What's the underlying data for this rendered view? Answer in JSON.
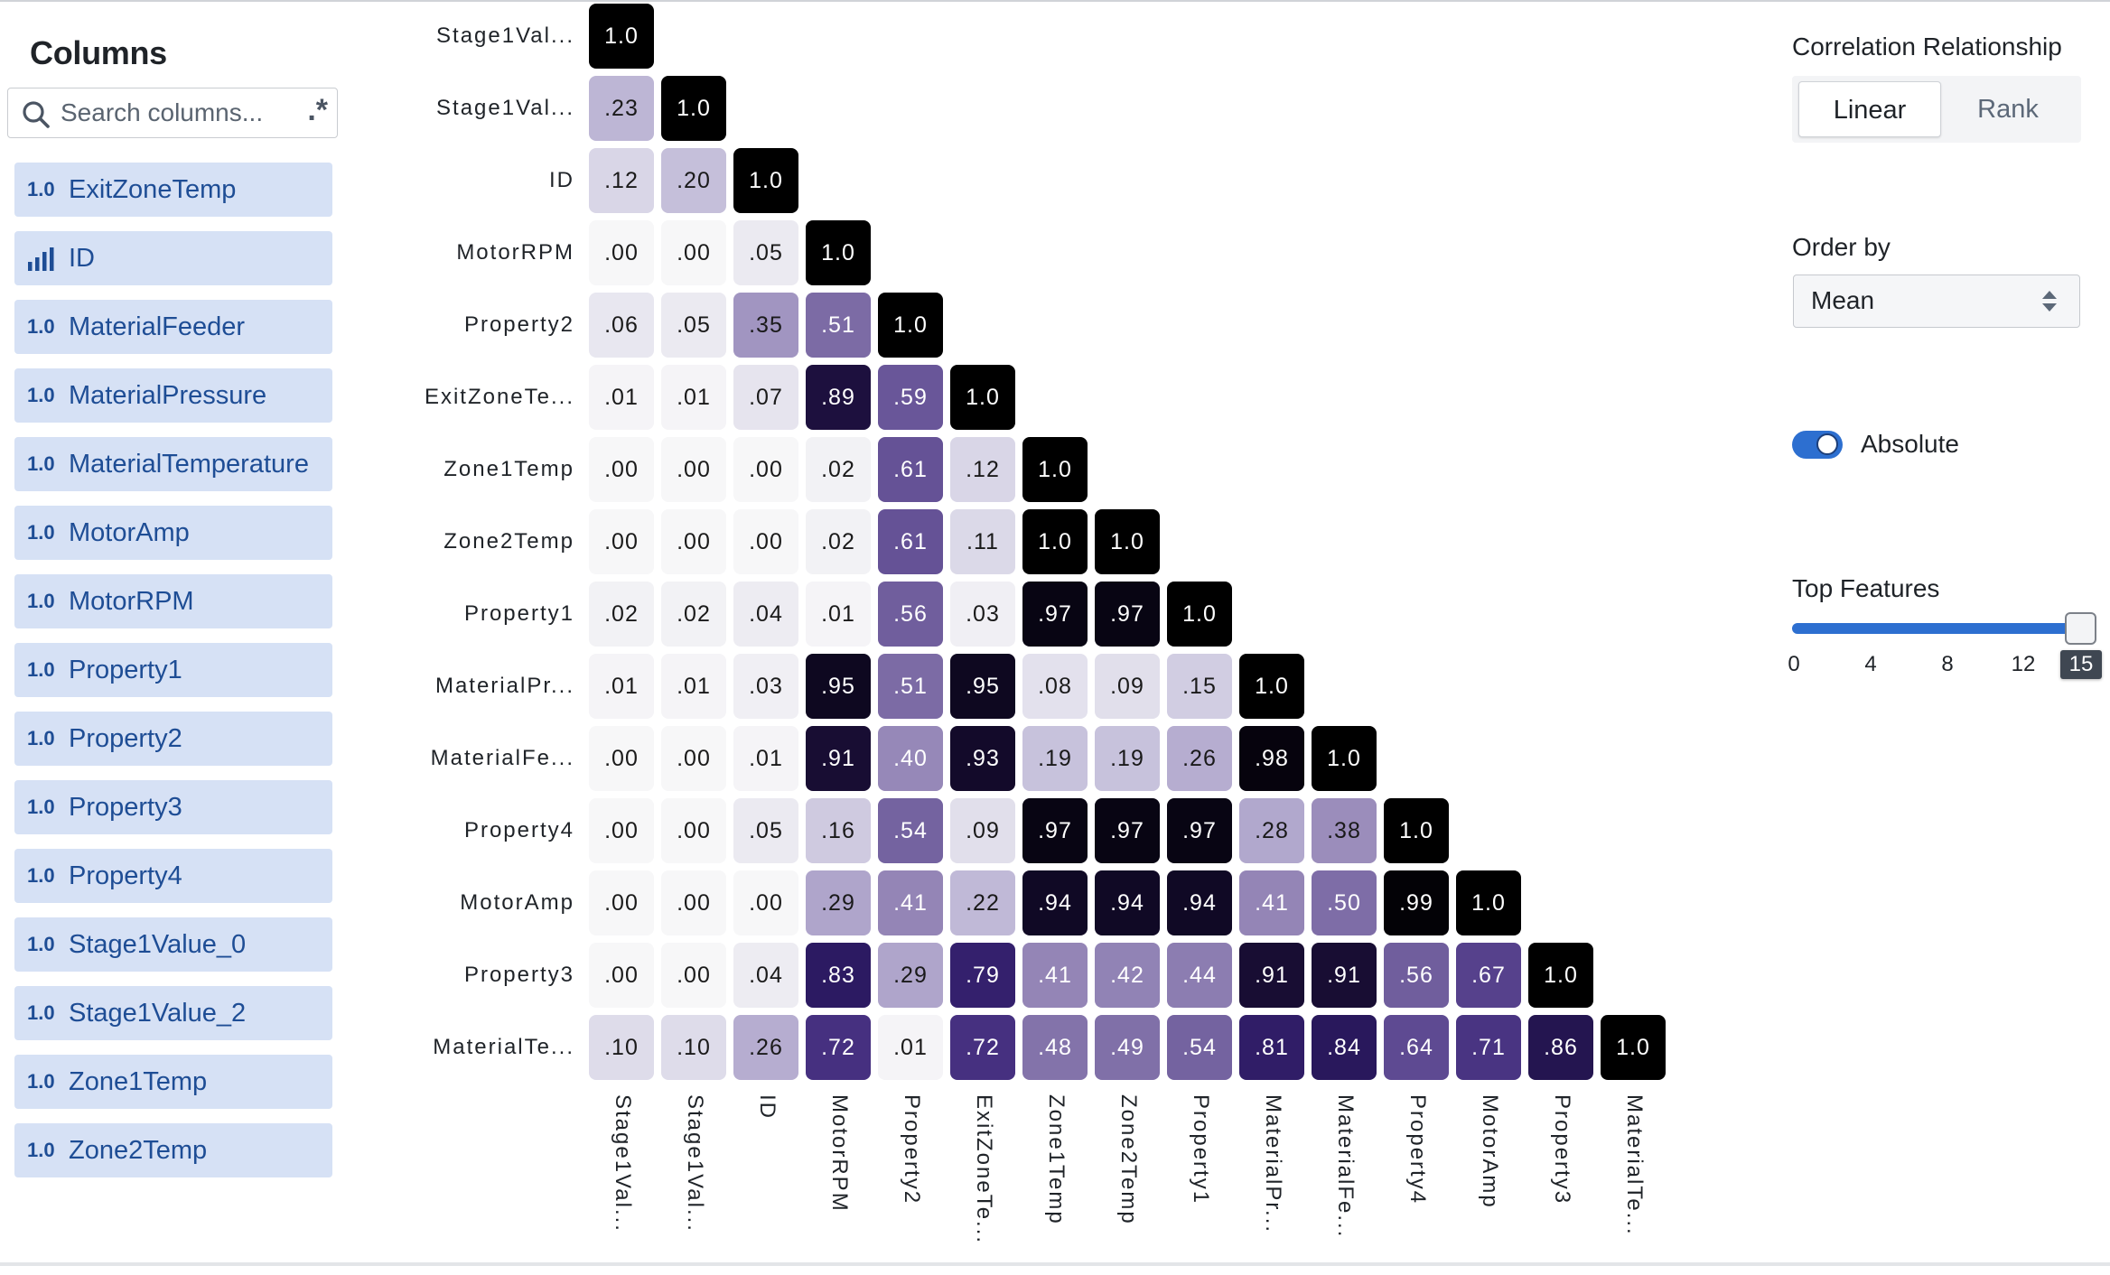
{
  "sidebar": {
    "title": "Columns",
    "search": {
      "placeholder": "Search columns...",
      "value": "",
      "regex_toggle": ".*"
    },
    "items": [
      {
        "score": "1.0",
        "name": "ExitZoneTemp",
        "icon": null
      },
      {
        "score": "",
        "name": "ID",
        "icon": "bar-chart-icon"
      },
      {
        "score": "1.0",
        "name": "MaterialFeeder",
        "icon": null
      },
      {
        "score": "1.0",
        "name": "MaterialPressure",
        "icon": null
      },
      {
        "score": "1.0",
        "name": "MaterialTemperature",
        "icon": null
      },
      {
        "score": "1.0",
        "name": "MotorAmp",
        "icon": null
      },
      {
        "score": "1.0",
        "name": "MotorRPM",
        "icon": null
      },
      {
        "score": "1.0",
        "name": "Property1",
        "icon": null
      },
      {
        "score": "1.0",
        "name": "Property2",
        "icon": null
      },
      {
        "score": "1.0",
        "name": "Property3",
        "icon": null
      },
      {
        "score": "1.0",
        "name": "Property4",
        "icon": null
      },
      {
        "score": "1.0",
        "name": "Stage1Value_0",
        "icon": null
      },
      {
        "score": "1.0",
        "name": "Stage1Value_2",
        "icon": null
      },
      {
        "score": "1.0",
        "name": "Zone1Temp",
        "icon": null
      },
      {
        "score": "1.0",
        "name": "Zone2Temp",
        "icon": null
      }
    ]
  },
  "controls": {
    "correlation_label": "Correlation Relationship",
    "correlation_options": [
      "Linear",
      "Rank"
    ],
    "correlation_selected": "Linear",
    "order_by_label": "Order by",
    "order_by_value": "Mean",
    "absolute_label": "Absolute",
    "absolute_on": true,
    "top_features_label": "Top Features",
    "top_features_ticks": [
      "0",
      "4",
      "8",
      "12"
    ],
    "top_features_value": "15",
    "top_features_max": 15
  },
  "colors": {
    "accent": "#2d6fd0",
    "sidebar_item_bg": "#d6e1f5",
    "sidebar_item_text": "#1e4d95",
    "scale_low": "#f7f7f8",
    "scale_high": "#000000"
  },
  "chart_data": {
    "type": "heatmap",
    "title": "",
    "subtitle": "Lower-triangular absolute linear correlation matrix",
    "row_labels": [
      "Stage1Val...",
      "Stage1Val...",
      "ID",
      "MotorRPM",
      "Property2",
      "ExitZoneTe...",
      "Zone1Temp",
      "Zone2Temp",
      "Property1",
      "MaterialPr...",
      "MaterialFe...",
      "Property4",
      "MotorAmp",
      "Property3",
      "MaterialTe..."
    ],
    "col_labels": [
      "Stage1Val...",
      "Stage1Val...",
      "ID",
      "MotorRPM",
      "Property2",
      "ExitZoneTe...",
      "Zone1Temp",
      "Zone2Temp",
      "Property1",
      "MaterialPr...",
      "MaterialFe...",
      "Property4",
      "MotorAmp",
      "Property3",
      "MaterialTe..."
    ],
    "values": [
      [
        "1.0"
      ],
      [
        ".23",
        "1.0"
      ],
      [
        ".12",
        ".20",
        "1.0"
      ],
      [
        ".00",
        ".00",
        ".05",
        "1.0"
      ],
      [
        ".06",
        ".05",
        ".35",
        ".51",
        "1.0"
      ],
      [
        ".01",
        ".01",
        ".07",
        ".89",
        ".59",
        "1.0"
      ],
      [
        ".00",
        ".00",
        ".00",
        ".02",
        ".61",
        ".12",
        "1.0"
      ],
      [
        ".00",
        ".00",
        ".00",
        ".02",
        ".61",
        ".11",
        "1.0",
        "1.0"
      ],
      [
        ".02",
        ".02",
        ".04",
        ".01",
        ".56",
        ".03",
        ".97",
        ".97",
        "1.0"
      ],
      [
        ".01",
        ".01",
        ".03",
        ".95",
        ".51",
        ".95",
        ".08",
        ".09",
        ".15",
        "1.0"
      ],
      [
        ".00",
        ".00",
        ".01",
        ".91",
        ".40",
        ".93",
        ".19",
        ".19",
        ".26",
        ".98",
        "1.0"
      ],
      [
        ".00",
        ".00",
        ".05",
        ".16",
        ".54",
        ".09",
        ".97",
        ".97",
        ".97",
        ".28",
        ".38",
        "1.0"
      ],
      [
        ".00",
        ".00",
        ".00",
        ".29",
        ".41",
        ".22",
        ".94",
        ".94",
        ".94",
        ".41",
        ".50",
        ".99",
        "1.0"
      ],
      [
        ".00",
        ".00",
        ".04",
        ".83",
        ".29",
        ".79",
        ".41",
        ".42",
        ".44",
        ".91",
        ".91",
        ".56",
        ".67",
        "1.0"
      ],
      [
        ".10",
        ".10",
        ".26",
        ".72",
        ".01",
        ".72",
        ".48",
        ".49",
        ".54",
        ".81",
        ".84",
        ".64",
        ".71",
        ".86",
        "1.0"
      ]
    ],
    "value_range": [
      0,
      1
    ],
    "colorscale": "Purples (white to black)",
    "grid": false,
    "legend": "none"
  }
}
